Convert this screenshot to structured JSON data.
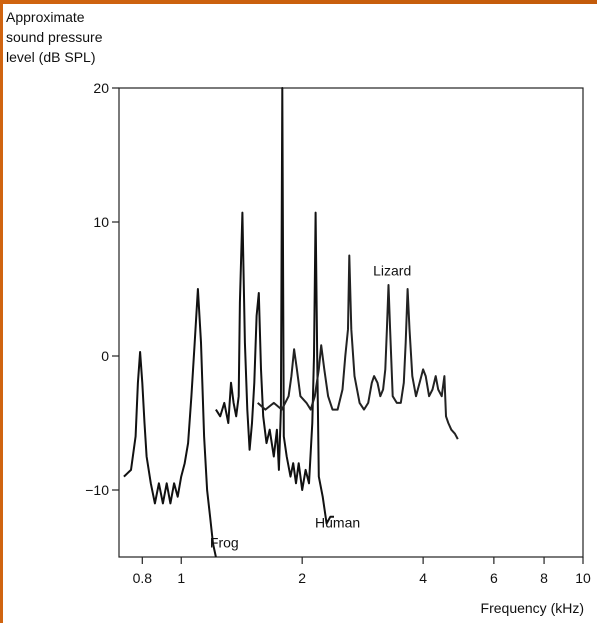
{
  "chart_data": {
    "type": "line",
    "ylabel_lines": [
      "Approximate",
      "sound pressure",
      "level (dB SPL)"
    ],
    "xlabel": "Frequency (kHz)",
    "x_scale": "log",
    "xlim": [
      0.7,
      10
    ],
    "ylim": [
      -15,
      20
    ],
    "y_ticks": [
      20,
      10,
      0,
      -10
    ],
    "x_ticks": [
      {
        "value": 0.8,
        "label": "0.8"
      },
      {
        "value": 1,
        "label": "1"
      },
      {
        "value": 2,
        "label": "2"
      },
      {
        "value": 4,
        "label": "4"
      },
      {
        "value": 6,
        "label": "6"
      },
      {
        "value": 8,
        "label": "8"
      },
      {
        "value": 10,
        "label": "10"
      }
    ],
    "series": [
      {
        "name": "Frog",
        "color": "#111111",
        "points": [
          [
            0.72,
            -9
          ],
          [
            0.75,
            -8.5
          ],
          [
            0.77,
            -6
          ],
          [
            0.78,
            -2
          ],
          [
            0.79,
            0.3
          ],
          [
            0.8,
            -2
          ],
          [
            0.81,
            -5
          ],
          [
            0.82,
            -7.5
          ],
          [
            0.84,
            -9.5
          ],
          [
            0.86,
            -11
          ],
          [
            0.88,
            -9.5
          ],
          [
            0.9,
            -11
          ],
          [
            0.92,
            -9.5
          ],
          [
            0.94,
            -11
          ],
          [
            0.96,
            -9.5
          ],
          [
            0.98,
            -10.5
          ],
          [
            1.0,
            -9
          ],
          [
            1.02,
            -8
          ],
          [
            1.04,
            -6.5
          ],
          [
            1.06,
            -3
          ],
          [
            1.08,
            1
          ],
          [
            1.1,
            5
          ],
          [
            1.12,
            1
          ],
          [
            1.14,
            -6
          ],
          [
            1.16,
            -10
          ],
          [
            1.18,
            -12
          ],
          [
            1.2,
            -14
          ],
          [
            1.22,
            -15
          ]
        ]
      },
      {
        "name": "Human",
        "color": "#111111",
        "points": [
          [
            1.22,
            -4
          ],
          [
            1.25,
            -4.5
          ],
          [
            1.28,
            -3.5
          ],
          [
            1.31,
            -5
          ],
          [
            1.33,
            -2
          ],
          [
            1.35,
            -3.5
          ],
          [
            1.37,
            -4.5
          ],
          [
            1.39,
            -3
          ],
          [
            1.4,
            4
          ],
          [
            1.42,
            10.7
          ],
          [
            1.44,
            1
          ],
          [
            1.46,
            -4
          ],
          [
            1.48,
            -7
          ],
          [
            1.5,
            -5
          ],
          [
            1.52,
            -2
          ],
          [
            1.54,
            3
          ],
          [
            1.56,
            4.7
          ],
          [
            1.58,
            -1
          ],
          [
            1.6,
            -4.5
          ],
          [
            1.63,
            -6.5
          ],
          [
            1.66,
            -5.5
          ],
          [
            1.7,
            -7.5
          ],
          [
            1.73,
            -5.5
          ],
          [
            1.75,
            -8.5
          ],
          [
            1.77,
            -4
          ],
          [
            1.785,
            20
          ],
          [
            1.8,
            -6
          ],
          [
            1.83,
            -7.5
          ],
          [
            1.87,
            -9
          ],
          [
            1.9,
            -8
          ],
          [
            1.93,
            -9.5
          ],
          [
            1.96,
            -8
          ],
          [
            2.0,
            -10
          ],
          [
            2.04,
            -8.5
          ],
          [
            2.08,
            -9.5
          ],
          [
            2.12,
            -5
          ],
          [
            2.14,
            0
          ],
          [
            2.16,
            10.7
          ],
          [
            2.18,
            0
          ],
          [
            2.2,
            -9
          ],
          [
            2.25,
            -10.5
          ],
          [
            2.3,
            -12.5
          ],
          [
            2.35,
            -12
          ],
          [
            2.4,
            -12
          ]
        ]
      },
      {
        "name": "Lizard",
        "color": "#222222",
        "points": [
          [
            1.55,
            -3.5
          ],
          [
            1.62,
            -4
          ],
          [
            1.7,
            -3.5
          ],
          [
            1.78,
            -4
          ],
          [
            1.85,
            -3
          ],
          [
            1.88,
            -1.5
          ],
          [
            1.91,
            0.5
          ],
          [
            1.94,
            -1
          ],
          [
            1.98,
            -3
          ],
          [
            2.05,
            -3.5
          ],
          [
            2.1,
            -4
          ],
          [
            2.15,
            -3
          ],
          [
            2.2,
            -1
          ],
          [
            2.23,
            0.8
          ],
          [
            2.27,
            -1
          ],
          [
            2.32,
            -3
          ],
          [
            2.38,
            -4
          ],
          [
            2.45,
            -4
          ],
          [
            2.52,
            -2.5
          ],
          [
            2.56,
            0
          ],
          [
            2.6,
            2
          ],
          [
            2.62,
            7.5
          ],
          [
            2.65,
            2
          ],
          [
            2.7,
            -1.5
          ],
          [
            2.78,
            -3.5
          ],
          [
            2.85,
            -4
          ],
          [
            2.92,
            -3.5
          ],
          [
            2.98,
            -2
          ],
          [
            3.02,
            -1.5
          ],
          [
            3.08,
            -2
          ],
          [
            3.13,
            -3
          ],
          [
            3.18,
            -2.5
          ],
          [
            3.22,
            -1
          ],
          [
            3.25,
            2
          ],
          [
            3.28,
            5.3
          ],
          [
            3.31,
            2
          ],
          [
            3.36,
            -3
          ],
          [
            3.44,
            -3.5
          ],
          [
            3.52,
            -3.5
          ],
          [
            3.58,
            -2
          ],
          [
            3.62,
            1
          ],
          [
            3.66,
            5
          ],
          [
            3.7,
            2
          ],
          [
            3.76,
            -1.5
          ],
          [
            3.84,
            -3
          ],
          [
            3.92,
            -2
          ],
          [
            4.0,
            -1
          ],
          [
            4.06,
            -1.5
          ],
          [
            4.14,
            -3
          ],
          [
            4.22,
            -2.5
          ],
          [
            4.3,
            -1.5
          ],
          [
            4.36,
            -2.5
          ],
          [
            4.45,
            -3
          ],
          [
            4.52,
            -1.5
          ],
          [
            4.56,
            -4.5
          ],
          [
            4.62,
            -5
          ],
          [
            4.7,
            -5.5
          ],
          [
            4.8,
            -5.8
          ],
          [
            4.88,
            -6.2
          ]
        ]
      }
    ],
    "annotations": [
      {
        "text": "Lizard",
        "x": 3.35,
        "y": 6.0
      },
      {
        "text": "Human",
        "x": 2.45,
        "y": -12.8
      },
      {
        "text": "Frog",
        "x": 1.28,
        "y": -14.3
      }
    ]
  }
}
